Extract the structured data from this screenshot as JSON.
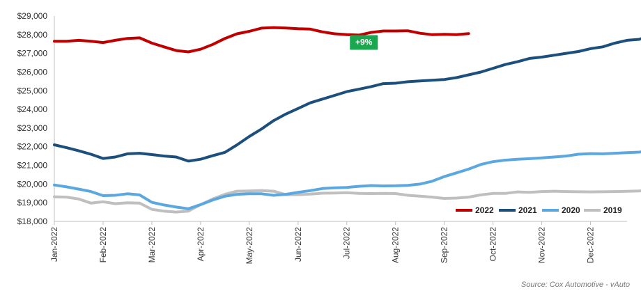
{
  "chart_data": {
    "type": "line",
    "title": "",
    "xlabel": "",
    "ylabel": "",
    "ylim": [
      18000,
      29000
    ],
    "y_ticks": [
      18000,
      19000,
      20000,
      21000,
      22000,
      23000,
      24000,
      25000,
      26000,
      27000,
      28000,
      29000
    ],
    "y_tick_labels": [
      "$18,000",
      "$19,000",
      "$20,000",
      "$21,000",
      "$22,000",
      "$23,000",
      "$24,000",
      "$25,000",
      "$26,000",
      "$27,000",
      "$28,000",
      "$29,000"
    ],
    "x_tick_labels": [
      "Jan-2022",
      "Feb-2022",
      "Mar-2022",
      "Apr-2022",
      "May-2022",
      "Jun-2022",
      "Jul-2022",
      "Aug-2022",
      "Sep-2022",
      "Oct-2022",
      "Nov-2022",
      "Dec-2022"
    ],
    "grid": false,
    "legend_position": "bottom-right",
    "annotation": {
      "text": "+9%",
      "color": "#1aa84f",
      "x": 6.35,
      "y": 27600
    },
    "source": "Source: Cox Automotive - vAuto",
    "series": [
      {
        "name": "2022",
        "color": "#c00000",
        "points": [
          [
            0,
            27650
          ],
          [
            0.25,
            27650
          ],
          [
            0.5,
            27700
          ],
          [
            0.75,
            27650
          ],
          [
            1,
            27580
          ],
          [
            1.25,
            27700
          ],
          [
            1.5,
            27800
          ],
          [
            1.75,
            27830
          ],
          [
            2,
            27550
          ],
          [
            2.25,
            27350
          ],
          [
            2.5,
            27150
          ],
          [
            2.75,
            27080
          ],
          [
            3,
            27220
          ],
          [
            3.25,
            27480
          ],
          [
            3.5,
            27800
          ],
          [
            3.75,
            28050
          ],
          [
            4,
            28180
          ],
          [
            4.25,
            28350
          ],
          [
            4.5,
            28380
          ],
          [
            4.75,
            28360
          ],
          [
            5,
            28320
          ],
          [
            5.25,
            28300
          ],
          [
            5.5,
            28150
          ],
          [
            5.75,
            28050
          ],
          [
            6,
            28000
          ],
          [
            6.25,
            27980
          ],
          [
            6.5,
            28120
          ],
          [
            6.75,
            28200
          ],
          [
            7,
            28200
          ],
          [
            7.25,
            28210
          ],
          [
            7.5,
            28080
          ],
          [
            7.75,
            28000
          ],
          [
            8,
            28020
          ],
          [
            8.25,
            28000
          ],
          [
            8.5,
            28060
          ]
        ]
      },
      {
        "name": "2021",
        "color": "#1c4f7c",
        "points": [
          [
            0,
            22100
          ],
          [
            0.25,
            21950
          ],
          [
            0.5,
            21780
          ],
          [
            0.75,
            21600
          ],
          [
            1,
            21370
          ],
          [
            1.25,
            21450
          ],
          [
            1.5,
            21620
          ],
          [
            1.75,
            21650
          ],
          [
            2,
            21580
          ],
          [
            2.25,
            21500
          ],
          [
            2.5,
            21450
          ],
          [
            2.75,
            21230
          ],
          [
            3,
            21330
          ],
          [
            3.25,
            21520
          ],
          [
            3.5,
            21700
          ],
          [
            3.75,
            22100
          ],
          [
            4,
            22550
          ],
          [
            4.25,
            22950
          ],
          [
            4.5,
            23400
          ],
          [
            4.75,
            23750
          ],
          [
            5,
            24050
          ],
          [
            5.25,
            24350
          ],
          [
            5.5,
            24550
          ],
          [
            5.75,
            24750
          ],
          [
            6,
            24950
          ],
          [
            6.25,
            25080
          ],
          [
            6.5,
            25220
          ],
          [
            6.75,
            25380
          ],
          [
            7,
            25400
          ],
          [
            7.25,
            25480
          ],
          [
            7.5,
            25520
          ],
          [
            7.75,
            25560
          ],
          [
            8,
            25600
          ],
          [
            8.25,
            25700
          ],
          [
            8.5,
            25850
          ],
          [
            8.75,
            26000
          ],
          [
            9,
            26200
          ],
          [
            9.25,
            26400
          ],
          [
            9.5,
            26550
          ],
          [
            9.75,
            26730
          ],
          [
            10,
            26800
          ],
          [
            10.25,
            26900
          ],
          [
            10.5,
            27000
          ],
          [
            10.75,
            27100
          ],
          [
            11,
            27250
          ],
          [
            11.25,
            27350
          ],
          [
            11.5,
            27550
          ],
          [
            11.75,
            27700
          ],
          [
            12,
            27750
          ],
          [
            12.25,
            27980
          ],
          [
            12.5,
            28100
          ],
          [
            12.75,
            28200
          ]
        ]
      },
      {
        "name": "2020",
        "color": "#5ba8e0",
        "points": [
          [
            0,
            19950
          ],
          [
            0.25,
            19850
          ],
          [
            0.5,
            19730
          ],
          [
            0.75,
            19600
          ],
          [
            1,
            19380
          ],
          [
            1.25,
            19400
          ],
          [
            1.5,
            19480
          ],
          [
            1.75,
            19420
          ],
          [
            2,
            19020
          ],
          [
            2.25,
            18880
          ],
          [
            2.5,
            18770
          ],
          [
            2.75,
            18680
          ],
          [
            3,
            18900
          ],
          [
            3.25,
            19150
          ],
          [
            3.5,
            19350
          ],
          [
            3.75,
            19450
          ],
          [
            4,
            19480
          ],
          [
            4.25,
            19480
          ],
          [
            4.5,
            19400
          ],
          [
            4.75,
            19450
          ],
          [
            5,
            19560
          ],
          [
            5.25,
            19650
          ],
          [
            5.5,
            19760
          ],
          [
            5.75,
            19800
          ],
          [
            6,
            19820
          ],
          [
            6.25,
            19880
          ],
          [
            6.5,
            19920
          ],
          [
            6.75,
            19900
          ],
          [
            7,
            19910
          ],
          [
            7.25,
            19930
          ],
          [
            7.5,
            20000
          ],
          [
            7.75,
            20150
          ],
          [
            8,
            20400
          ],
          [
            8.25,
            20600
          ],
          [
            8.5,
            20800
          ],
          [
            8.75,
            21050
          ],
          [
            9,
            21200
          ],
          [
            9.25,
            21280
          ],
          [
            9.5,
            21330
          ],
          [
            9.75,
            21360
          ],
          [
            10,
            21400
          ],
          [
            10.25,
            21450
          ],
          [
            10.5,
            21500
          ],
          [
            10.75,
            21600
          ],
          [
            11,
            21630
          ],
          [
            11.25,
            21620
          ],
          [
            11.5,
            21650
          ],
          [
            11.75,
            21680
          ],
          [
            12,
            21710
          ],
          [
            12.25,
            21800
          ],
          [
            12.5,
            21870
          ],
          [
            12.75,
            22060
          ]
        ]
      },
      {
        "name": "2019",
        "color": "#bfbfbf",
        "points": [
          [
            0,
            19320
          ],
          [
            0.25,
            19300
          ],
          [
            0.5,
            19200
          ],
          [
            0.75,
            18980
          ],
          [
            1,
            19050
          ],
          [
            1.25,
            18950
          ],
          [
            1.5,
            19000
          ],
          [
            1.75,
            18980
          ],
          [
            2,
            18650
          ],
          [
            2.25,
            18550
          ],
          [
            2.5,
            18500
          ],
          [
            2.75,
            18550
          ],
          [
            3,
            18900
          ],
          [
            3.25,
            19200
          ],
          [
            3.5,
            19450
          ],
          [
            3.75,
            19620
          ],
          [
            4,
            19630
          ],
          [
            4.25,
            19650
          ],
          [
            4.5,
            19620
          ],
          [
            4.75,
            19430
          ],
          [
            5,
            19430
          ],
          [
            5.25,
            19460
          ],
          [
            5.5,
            19510
          ],
          [
            5.75,
            19520
          ],
          [
            6,
            19540
          ],
          [
            6.25,
            19500
          ],
          [
            6.5,
            19490
          ],
          [
            6.75,
            19500
          ],
          [
            7,
            19490
          ],
          [
            7.25,
            19400
          ],
          [
            7.5,
            19350
          ],
          [
            7.75,
            19300
          ],
          [
            8,
            19230
          ],
          [
            8.25,
            19250
          ],
          [
            8.5,
            19300
          ],
          [
            8.75,
            19420
          ],
          [
            9,
            19500
          ],
          [
            9.25,
            19500
          ],
          [
            9.5,
            19580
          ],
          [
            9.75,
            19560
          ],
          [
            10,
            19600
          ],
          [
            10.25,
            19620
          ],
          [
            10.5,
            19600
          ],
          [
            10.75,
            19590
          ],
          [
            11,
            19580
          ],
          [
            11.25,
            19590
          ],
          [
            11.5,
            19600
          ],
          [
            11.75,
            19610
          ],
          [
            12,
            19630
          ],
          [
            12.25,
            19680
          ],
          [
            12.5,
            19780
          ],
          [
            12.75,
            19860
          ]
        ]
      }
    ]
  }
}
